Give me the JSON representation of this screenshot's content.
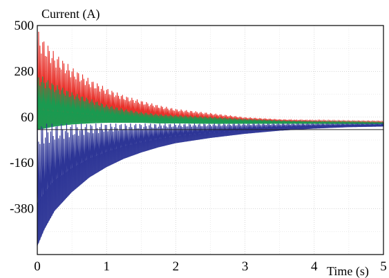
{
  "chart_data": {
    "type": "line",
    "ylabel": "Current (A)",
    "xlabel": "Time (s)",
    "xlim": [
      0,
      5
    ],
    "ylim": [
      -600,
      500
    ],
    "y_ticks": [
      "500",
      "280",
      "60",
      "-160",
      "-380"
    ],
    "y_tick_values": [
      500,
      280,
      60,
      -160,
      -380
    ],
    "x_ticks": [
      "0",
      "1",
      "2",
      "3",
      "4",
      "5"
    ],
    "x_tick_values": [
      0,
      1,
      2,
      3,
      4,
      5
    ],
    "grid": true,
    "background": "#ffffff",
    "series": [
      {
        "color": "#e8322b",
        "envelope_time": [
          0,
          0.1,
          0.25,
          0.5,
          0.75,
          1.0,
          1.25,
          1.5,
          1.75,
          2.0,
          2.5,
          3.0,
          3.5,
          4.0,
          4.5,
          5.0
        ],
        "envelope_upper": [
          480,
          430,
          370,
          300,
          245,
          200,
          165,
          140,
          118,
          100,
          80,
          60,
          50,
          45,
          42,
          40
        ],
        "envelope_lower": [
          0,
          10,
          25,
          35,
          40,
          45,
          45,
          45,
          42,
          40,
          38,
          36,
          35,
          33,
          32,
          30
        ]
      },
      {
        "color": "#1a9a50",
        "envelope_time": [
          0,
          0.1,
          0.25,
          0.5,
          0.75,
          1.0,
          1.25,
          1.5,
          1.75,
          2.0,
          2.5,
          3.0,
          3.5,
          4.0,
          4.5,
          5.0
        ],
        "envelope_upper": [
          270,
          250,
          220,
          180,
          150,
          120,
          100,
          85,
          75,
          70,
          62,
          52,
          45,
          40,
          38,
          35
        ],
        "envelope_lower": [
          0,
          5,
          15,
          25,
          30,
          33,
          33,
          33,
          30,
          30,
          28,
          28,
          28,
          28,
          27,
          26
        ]
      },
      {
        "color": "#2d3596",
        "envelope_time": [
          0,
          0.1,
          0.25,
          0.5,
          0.75,
          1.0,
          1.25,
          1.5,
          1.75,
          2.0,
          2.5,
          3.0,
          3.5,
          4.0,
          4.5,
          5.0
        ],
        "envelope_upper": [
          30,
          30,
          30,
          30,
          30,
          30,
          30,
          30,
          30,
          30,
          30,
          30,
          30,
          30,
          30,
          30
        ],
        "envelope_lower": [
          -560,
          -480,
          -390,
          -300,
          -230,
          -180,
          -140,
          -110,
          -85,
          -65,
          -40,
          -20,
          -5,
          5,
          12,
          15
        ]
      }
    ]
  }
}
